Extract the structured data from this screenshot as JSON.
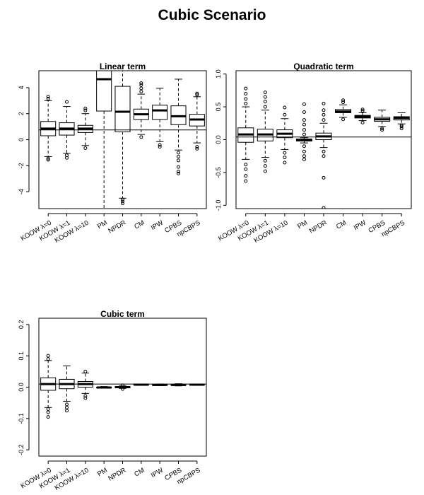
{
  "title": "Cubic Scenario",
  "categories": [
    "KOOW λ=0",
    "KOOW λ=1",
    "KOOW λ=10",
    "PM",
    "NPDR",
    "CM",
    "IPW",
    "CPBS",
    "npCBPS"
  ],
  "chart_data": [
    {
      "type": "boxplot",
      "title": "Linear term",
      "ylim": [
        -5.3,
        5.3
      ],
      "yticks": [
        -4,
        -2,
        0,
        2,
        4
      ],
      "reference_line": 0.75,
      "boxes": [
        {
          "whisker_low": -1.3,
          "q1": 0.3,
          "median": 0.85,
          "q3": 1.4,
          "whisker_high": 3.0,
          "outliers": [
            -1.55,
            -1.45,
            3.15,
            3.3
          ]
        },
        {
          "whisker_low": -1.05,
          "q1": 0.35,
          "median": 0.85,
          "q3": 1.3,
          "whisker_high": 2.55,
          "outliers": [
            -1.4,
            -1.2,
            2.9
          ]
        },
        {
          "whisker_low": -0.45,
          "q1": 0.55,
          "median": 0.85,
          "q3": 1.1,
          "whisker_high": 2.0,
          "outliers": [
            -0.65,
            2.25,
            2.4
          ]
        },
        {
          "whisker_low": -5.3,
          "q1": 2.2,
          "median": 4.65,
          "q3": 5.3,
          "whisker_high": 5.3,
          "outliers": []
        },
        {
          "whisker_low": -4.5,
          "q1": 0.6,
          "median": 2.15,
          "q3": 4.1,
          "whisker_high": 5.3,
          "outliers": [
            -4.6,
            -4.75,
            -4.9
          ]
        },
        {
          "whisker_low": 0.4,
          "q1": 1.55,
          "median": 1.95,
          "q3": 2.35,
          "whisker_high": 3.5,
          "outliers": [
            0.2,
            3.7,
            3.95,
            4.2,
            4.35
          ]
        },
        {
          "whisker_low": -0.15,
          "q1": 1.55,
          "median": 2.25,
          "q3": 2.65,
          "whisker_high": 3.95,
          "outliers": [
            -0.4,
            -0.55
          ]
        },
        {
          "whisker_low": -0.8,
          "q1": 1.15,
          "median": 1.8,
          "q3": 2.6,
          "whisker_high": 4.65,
          "outliers": [
            -1.0,
            -1.3,
            -1.6,
            -2.1,
            -2.45,
            -2.6
          ]
        },
        {
          "whisker_low": -0.25,
          "q1": 1.05,
          "median": 1.55,
          "q3": 1.95,
          "whisker_high": 3.3,
          "outliers": [
            -0.55,
            -0.7,
            3.45,
            3.55
          ]
        }
      ]
    },
    {
      "type": "boxplot",
      "title": "Quadratic term",
      "ylim": [
        -1.05,
        1.05
      ],
      "yticks": [
        -1.0,
        -0.5,
        0.0,
        0.5,
        1.0
      ],
      "ytick_labels": [
        "-1.0",
        "-0.5",
        "0.0",
        "0.5",
        "1.0"
      ],
      "reference_line": 0.04,
      "boxes": [
        {
          "whisker_low": -0.3,
          "q1": -0.04,
          "median": 0.08,
          "q3": 0.18,
          "whisker_high": 0.5,
          "outliers": [
            -0.38,
            -0.45,
            -0.55,
            -0.63,
            0.55,
            0.62,
            0.7,
            0.78
          ]
        },
        {
          "whisker_low": -0.27,
          "q1": -0.02,
          "median": 0.08,
          "q3": 0.16,
          "whisker_high": 0.45,
          "outliers": [
            -0.32,
            -0.4,
            -0.48,
            0.5,
            0.58,
            0.65,
            0.72
          ]
        },
        {
          "whisker_low": -0.15,
          "q1": 0.03,
          "median": 0.09,
          "q3": 0.15,
          "whisker_high": 0.32,
          "outliers": [
            -0.2,
            -0.27,
            -0.35,
            0.38,
            0.49
          ]
        },
        {
          "whisker_low": -0.05,
          "q1": -0.02,
          "median": -0.01,
          "q3": 0.01,
          "whisker_high": 0.03,
          "outliers": [
            -0.1,
            -0.18,
            -0.25,
            -0.3,
            0.08,
            0.15,
            0.23,
            0.3,
            0.42,
            0.54
          ]
        },
        {
          "whisker_low": -0.12,
          "q1": 0.0,
          "median": 0.05,
          "q3": 0.1,
          "whisker_high": 0.25,
          "outliers": [
            -0.18,
            -0.25,
            -0.58,
            -1.04,
            0.3,
            0.38,
            0.45,
            0.55
          ]
        },
        {
          "whisker_low": 0.34,
          "q1": 0.41,
          "median": 0.43,
          "q3": 0.46,
          "whisker_high": 0.53,
          "outliers": [
            0.31,
            0.57,
            0.6
          ]
        },
        {
          "whisker_low": 0.29,
          "q1": 0.33,
          "median": 0.35,
          "q3": 0.37,
          "whisker_high": 0.41,
          "outliers": [
            0.26,
            0.44,
            0.46
          ]
        },
        {
          "whisker_low": 0.2,
          "q1": 0.28,
          "median": 0.31,
          "q3": 0.34,
          "whisker_high": 0.45,
          "outliers": [
            0.15,
            0.17
          ]
        },
        {
          "whisker_low": 0.24,
          "q1": 0.3,
          "median": 0.33,
          "q3": 0.35,
          "whisker_high": 0.41,
          "outliers": [
            0.17,
            0.2,
            0.22
          ]
        }
      ]
    },
    {
      "type": "boxplot",
      "title": "Cubic term",
      "ylim": [
        -0.22,
        0.22
      ],
      "yticks": [
        -0.2,
        -0.1,
        0.0,
        0.1,
        0.2
      ],
      "ytick_labels": [
        "-0.2",
        "-0.1",
        "0.0",
        "0.1",
        "0.2"
      ],
      "reference_line": 0.01,
      "boxes": [
        {
          "whisker_low": -0.065,
          "q1": -0.01,
          "median": 0.01,
          "q3": 0.03,
          "whisker_high": 0.085,
          "outliers": [
            -0.07,
            -0.08,
            -0.095,
            0.09,
            0.1
          ]
        },
        {
          "whisker_low": -0.045,
          "q1": -0.005,
          "median": 0.01,
          "q3": 0.025,
          "whisker_high": 0.068,
          "outliers": [
            -0.055,
            -0.065,
            -0.075
          ]
        },
        {
          "whisker_low": -0.02,
          "q1": 0.0,
          "median": 0.01,
          "q3": 0.018,
          "whisker_high": 0.045,
          "outliers": [
            -0.028,
            -0.035,
            0.05
          ]
        },
        {
          "whisker_low": -0.003,
          "q1": -0.002,
          "median": -0.001,
          "q3": 0.0,
          "whisker_high": 0.002,
          "outliers": []
        },
        {
          "whisker_low": -0.004,
          "q1": -0.002,
          "median": 0.0,
          "q3": 0.002,
          "whisker_high": 0.004,
          "outliers": [
            -0.006,
            0.006
          ]
        },
        {
          "whisker_low": 0.006,
          "q1": 0.007,
          "median": 0.008,
          "q3": 0.009,
          "whisker_high": 0.01,
          "outliers": []
        },
        {
          "whisker_low": 0.005,
          "q1": 0.006,
          "median": 0.007,
          "q3": 0.008,
          "whisker_high": 0.01,
          "outliers": []
        },
        {
          "whisker_low": 0.004,
          "q1": 0.006,
          "median": 0.007,
          "q3": 0.009,
          "whisker_high": 0.011,
          "outliers": []
        },
        {
          "whisker_low": 0.006,
          "q1": 0.007,
          "median": 0.008,
          "q3": 0.009,
          "whisker_high": 0.01,
          "outliers": []
        }
      ]
    }
  ]
}
